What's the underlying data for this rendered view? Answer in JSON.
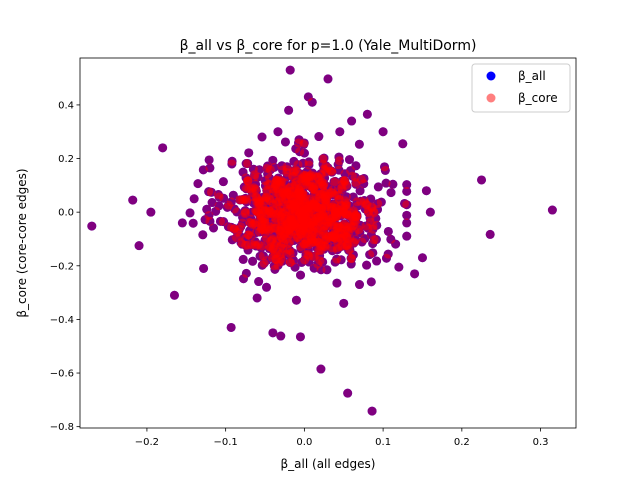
{
  "chart_data": {
    "type": "scatter",
    "title": "β_all vs β_core for p=1.0 (Yale_MultiDorm)",
    "xlabel": "β_all (all edges)",
    "ylabel": "β_core (core-core edges)",
    "xlim": [
      -0.285,
      0.345
    ],
    "ylim": [
      -0.805,
      0.575
    ],
    "x_ticks": [
      -0.2,
      -0.1,
      0.0,
      0.1,
      0.2,
      0.3
    ],
    "x_tick_labels": [
      "−0.2",
      "−0.1",
      "0.0",
      "0.1",
      "0.2",
      "0.3"
    ],
    "y_ticks": [
      -0.8,
      -0.6,
      -0.4,
      -0.2,
      0.0,
      0.2,
      0.4
    ],
    "y_tick_labels": [
      "−0.8",
      "−0.6",
      "−0.4",
      "−0.2",
      "0.0",
      "0.2",
      "0.4"
    ],
    "grid": false,
    "legend_position": "top-right",
    "overlap_color": "#800080",
    "series": [
      {
        "name": "β_all",
        "color": "#0000ff",
        "alpha": 1.0,
        "outliers": [
          [
            0.315,
            0.008
          ],
          [
            0.236,
            -0.083
          ],
          [
            0.225,
            0.12
          ],
          [
            -0.27,
            -0.052
          ],
          [
            0.086,
            -0.742
          ],
          [
            0.055,
            -0.675
          ],
          [
            0.021,
            -0.585
          ],
          [
            -0.018,
            0.53
          ],
          [
            0.03,
            0.497
          ],
          [
            -0.005,
            -0.465
          ],
          [
            -0.093,
            -0.43
          ],
          [
            -0.04,
            -0.45
          ],
          [
            -0.03,
            -0.462
          ],
          [
            0.05,
            -0.34
          ],
          [
            0.06,
            0.34
          ],
          [
            -0.18,
            0.24
          ],
          [
            -0.165,
            -0.31
          ],
          [
            -0.21,
            -0.125
          ],
          [
            -0.218,
            0.045
          ],
          [
            -0.195,
            0.0
          ],
          [
            0.16,
            0.0
          ],
          [
            0.15,
            -0.17
          ],
          [
            0.14,
            -0.23
          ],
          [
            0.155,
            0.08
          ],
          [
            0.125,
            0.255
          ],
          [
            0.1,
            0.3
          ],
          [
            -0.12,
            0.165
          ],
          [
            -0.128,
            -0.21
          ],
          [
            -0.02,
            0.38
          ],
          [
            0.005,
            0.43
          ],
          [
            0.01,
            0.41
          ],
          [
            0.07,
            -0.27
          ],
          [
            -0.06,
            -0.32
          ],
          [
            0.085,
            -0.26
          ],
          [
            -0.14,
            0.05
          ],
          [
            0.12,
            -0.205
          ],
          [
            -0.155,
            -0.04
          ],
          [
            0.13,
            -0.04
          ],
          [
            0.08,
            0.365
          ],
          [
            0.045,
            0.3
          ]
        ],
        "cluster": {
          "center": [
            0.0,
            0.0
          ],
          "sd": [
            0.05,
            0.1
          ],
          "count": 900
        }
      },
      {
        "name": "β_core",
        "color": "#ff0000",
        "alpha": 0.5,
        "same_points_as": "β_all"
      }
    ]
  }
}
